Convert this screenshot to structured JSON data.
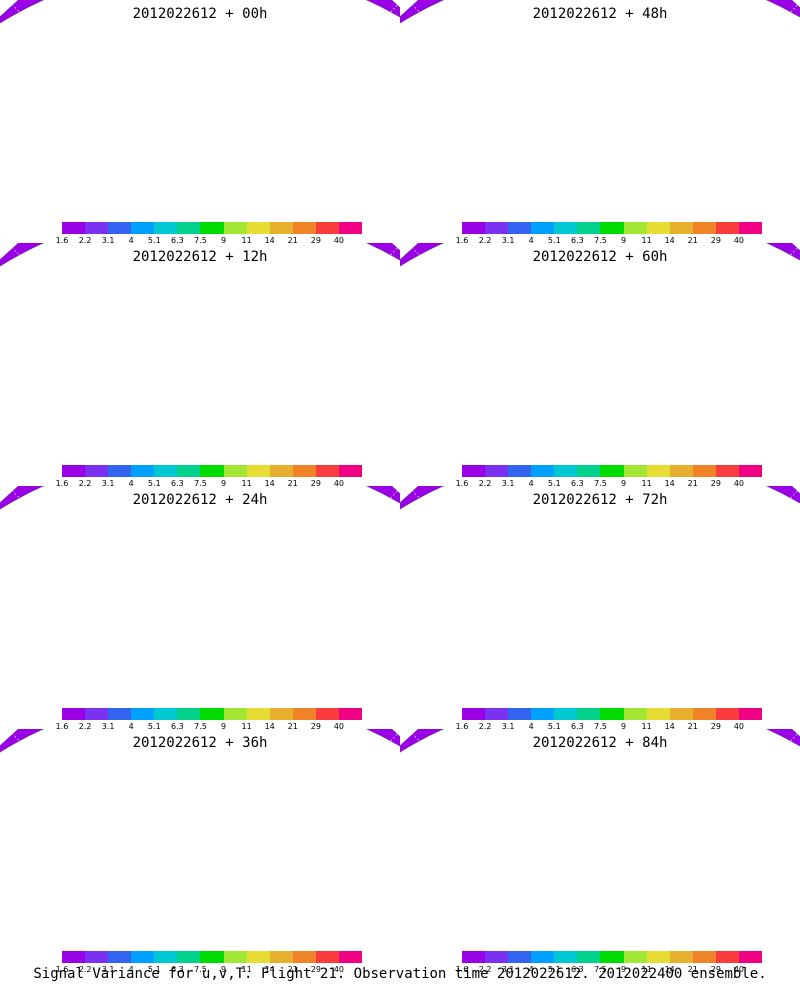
{
  "figure": {
    "caption": "Signal Variance for u,v,T. Flight 21. Observation time 2012022612. 2012022400 ensemble.",
    "colorbar": {
      "labels": [
        "1.6",
        "2.2",
        "3.1",
        "4",
        "5.1",
        "6.3",
        "7.5",
        "9",
        "11",
        "14",
        "21",
        "29",
        "40"
      ],
      "colors": [
        "#9900e6",
        "#7a32f0",
        "#3264f0",
        "#00a0ff",
        "#00c8d2",
        "#00d28c",
        "#00dc00",
        "#a0e632",
        "#e6dc32",
        "#e6af2d",
        "#f08228",
        "#fa3c3c",
        "#f00082"
      ]
    },
    "panels": [
      {
        "title": "2012022612 + 00h",
        "lead_hours": 0,
        "intensity": 0.35
      },
      {
        "title": "2012022612 + 48h",
        "lead_hours": 48,
        "intensity": 0.75
      },
      {
        "title": "2012022612 + 12h",
        "lead_hours": 12,
        "intensity": 0.45
      },
      {
        "title": "2012022612 + 60h",
        "lead_hours": 60,
        "intensity": 0.8
      },
      {
        "title": "2012022612 + 24h",
        "lead_hours": 24,
        "intensity": 0.55
      },
      {
        "title": "2012022612 + 72h",
        "lead_hours": 72,
        "intensity": 0.9
      },
      {
        "title": "2012022612 + 36h",
        "lead_hours": 36,
        "intensity": 0.6
      },
      {
        "title": "2012022612 + 84h",
        "lead_hours": 84,
        "intensity": 0.85
      }
    ]
  }
}
